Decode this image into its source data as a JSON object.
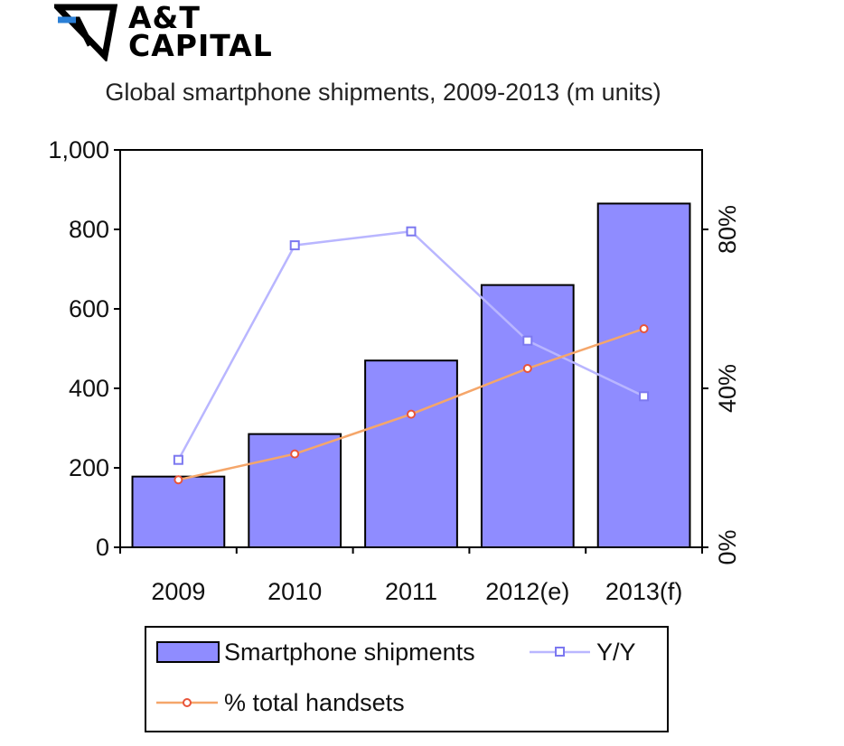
{
  "brand": {
    "name_line1": "A&T",
    "name_line2": "CAPITAL",
    "logo_icon": "folded-triangle-logo",
    "accent_color": "#2b7fd6"
  },
  "chart_data": {
    "type": "bar",
    "title": "Global smartphone shipments, 2009-2013 (m units)",
    "categories": [
      "2009",
      "2010",
      "2011",
      "2012(e)",
      "2013(f)"
    ],
    "left_axis": {
      "range": [
        0,
        1000
      ],
      "ticks": [
        "0",
        "200",
        "400",
        "600",
        "800",
        "1,000"
      ]
    },
    "right_axis": {
      "range": [
        0,
        100
      ],
      "ticks": [
        "0%",
        "40%",
        "80%"
      ]
    },
    "series": [
      {
        "name": "Smartphone shipments",
        "kind": "bar",
        "axis": "left",
        "values": [
          178,
          285,
          470,
          660,
          865
        ],
        "color": "#8f8cff"
      },
      {
        "name": "Y/Y",
        "kind": "line",
        "axis": "right",
        "marker": "square",
        "values": [
          22,
          76,
          79.5,
          52,
          38
        ],
        "color": "#b9b6ff"
      },
      {
        "name": "% total handsets",
        "kind": "line",
        "axis": "right",
        "marker": "circle",
        "values": [
          17,
          23.5,
          33.5,
          45,
          55
        ],
        "color": "#f5a66a"
      }
    ],
    "legend": {
      "placement": "bottom",
      "items": [
        "Smartphone shipments",
        "Y/Y",
        "% total handsets"
      ]
    },
    "grid": false
  }
}
